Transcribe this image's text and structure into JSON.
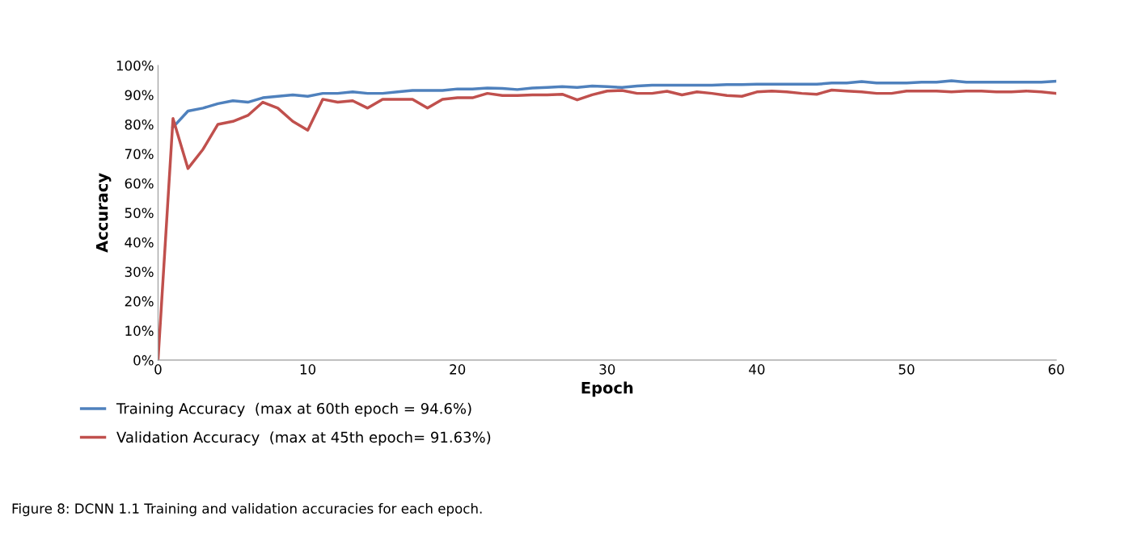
{
  "chart_data": {
    "type": "line",
    "xlabel": "Epoch",
    "ylabel": "Accuracy",
    "x": [
      0,
      1,
      2,
      3,
      4,
      5,
      6,
      7,
      8,
      9,
      10,
      11,
      12,
      13,
      14,
      15,
      16,
      17,
      18,
      19,
      20,
      21,
      22,
      23,
      24,
      25,
      26,
      27,
      28,
      29,
      30,
      31,
      32,
      33,
      34,
      35,
      36,
      37,
      38,
      39,
      40,
      41,
      42,
      43,
      44,
      45,
      46,
      47,
      48,
      49,
      50,
      51,
      52,
      53,
      54,
      55,
      56,
      57,
      58,
      59,
      60
    ],
    "series": [
      {
        "name": "Training Accuracy  (max at 60th epoch = 94.6%)",
        "color": "#4f81bd",
        "values": [
          null,
          79,
          84.5,
          85.5,
          87,
          88,
          87.5,
          89,
          89.5,
          90,
          89.5,
          90.5,
          90.5,
          91,
          90.5,
          90.5,
          91,
          91.5,
          91.5,
          91.5,
          92,
          92,
          92.3,
          92.2,
          91.8,
          92.3,
          92.5,
          92.8,
          92.5,
          93,
          92.8,
          92.5,
          93,
          93.3,
          93.3,
          93.3,
          93.3,
          93.3,
          93.5,
          93.5,
          93.6,
          93.6,
          93.6,
          93.6,
          93.6,
          94,
          94,
          94.5,
          94,
          94,
          94,
          94.3,
          94.3,
          94.8,
          94.3,
          94.3,
          94.3,
          94.3,
          94.3,
          94.3,
          94.6
        ]
      },
      {
        "name": "Validation Accuracy  (max at 45th epoch= 91.63%)",
        "color": "#c0504d",
        "values": [
          0,
          82,
          65,
          71.5,
          80,
          81,
          83,
          87.5,
          85.5,
          81,
          78,
          88.5,
          87.5,
          88,
          85.5,
          88.5,
          88.5,
          88.5,
          85.5,
          88.5,
          89,
          89,
          90.5,
          89.8,
          89.8,
          90,
          90,
          90.2,
          88.3,
          90,
          91.3,
          91.5,
          90.5,
          90.5,
          91.2,
          90,
          91,
          90.5,
          89.8,
          89.5,
          91,
          91.3,
          91,
          90.5,
          90.2,
          91.63,
          91.3,
          91,
          90.5,
          90.5,
          91.3,
          91.3,
          91.3,
          91,
          91.3,
          91.3,
          91,
          91,
          91.3,
          91,
          90.5
        ]
      }
    ],
    "xlim": [
      0,
      60
    ],
    "xticks": [
      0,
      10,
      20,
      30,
      40,
      50,
      60
    ],
    "ylim": [
      0,
      100
    ],
    "yticks": [
      {
        "value": 0,
        "label": "0%"
      },
      {
        "value": 10,
        "label": "10%"
      },
      {
        "value": 20,
        "label": "20%"
      },
      {
        "value": 30,
        "label": "30%"
      },
      {
        "value": 40,
        "label": "40%"
      },
      {
        "value": 50,
        "label": "50%"
      },
      {
        "value": 60,
        "label": "60%"
      },
      {
        "value": 70,
        "label": "70%"
      },
      {
        "value": 80,
        "label": "80%"
      },
      {
        "value": 90,
        "label": "90%"
      },
      {
        "value": 100,
        "label": "100%"
      }
    ],
    "grid": false,
    "legend": "bottom left",
    "annotations": [
      "Figure 8: DCNN 1.1 Training and validation accuracies for each epoch."
    ]
  }
}
